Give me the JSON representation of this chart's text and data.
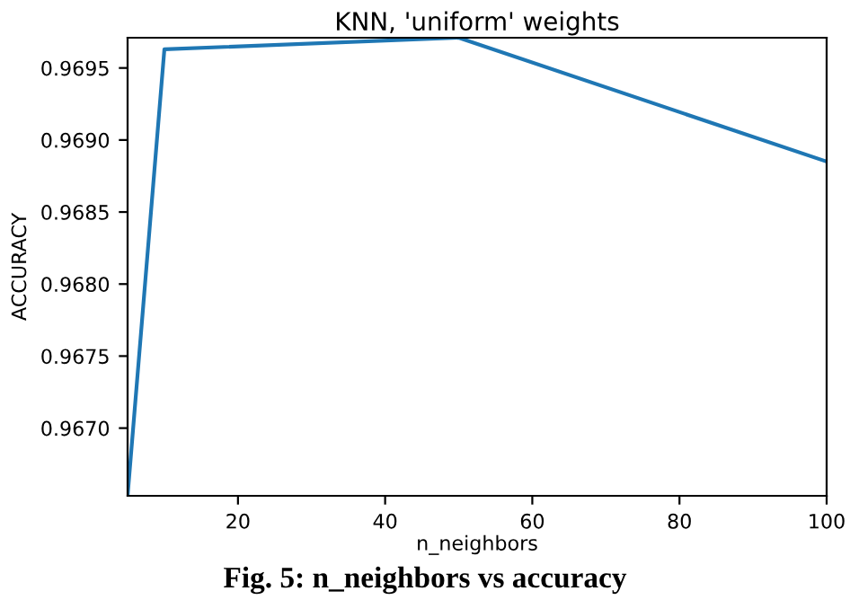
{
  "chart_data": {
    "type": "line",
    "title": "KNN, 'uniform' weights",
    "xlabel": "n_neighbors",
    "ylabel": "ACCURACY",
    "x": [
      5,
      10,
      50,
      100
    ],
    "series": [
      {
        "color": "#1f77b4",
        "values": [
          0.96653,
          0.96963,
          0.96971,
          0.96885
        ]
      }
    ],
    "xlim": [
      5,
      100
    ],
    "xticks": [
      20,
      40,
      60,
      80,
      100
    ],
    "ylim": [
      0.96653,
      0.96971
    ],
    "yticks": [
      {
        "value": 0.967,
        "label": "0.9670"
      },
      0.9675,
      {
        "value": 0.968,
        "label": "0.9680"
      },
      0.9685,
      {
        "value": 0.969,
        "label": "0.9690"
      },
      0.9695
    ],
    "grid": false,
    "legend": false,
    "marker": "none",
    "line_style": "solid",
    "annotations": [
      "Fig. 5: n_neighbors vs accuracy"
    ]
  }
}
